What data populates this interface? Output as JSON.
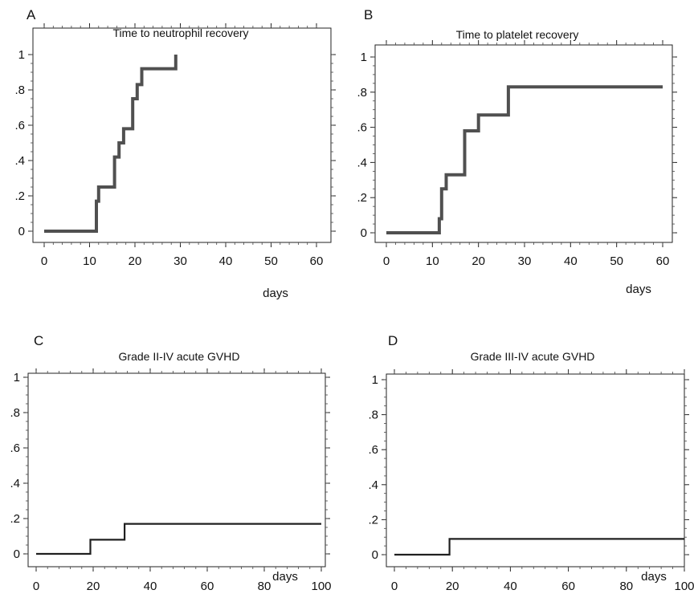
{
  "chart_data": [
    {
      "panel": "A",
      "type": "line",
      "step": true,
      "title": "Time to neutrophil recovery",
      "xlabel": "days",
      "ylabel": "",
      "xlim": [
        0,
        60
      ],
      "ylim": [
        0,
        1
      ],
      "xticks": [
        "0",
        "10",
        "20",
        "30",
        "40",
        "50",
        "60"
      ],
      "yticks": [
        "0",
        ".2",
        ".4",
        ".6",
        ".8",
        "1"
      ],
      "series": [
        {
          "x": [
            0,
            11.5,
            12,
            13,
            15.5,
            16.5,
            17.5,
            19.5,
            20.5,
            21.5,
            29
          ],
          "y": [
            0,
            0.17,
            0.25,
            0.25,
            0.42,
            0.5,
            0.58,
            0.75,
            0.83,
            0.92,
            1.0
          ]
        }
      ]
    },
    {
      "panel": "B",
      "type": "line",
      "step": true,
      "title": "Time to platelet recovery",
      "xlabel": "days",
      "ylabel": "",
      "xlim": [
        0,
        60
      ],
      "ylim": [
        0,
        1
      ],
      "xticks": [
        "0",
        "10",
        "20",
        "30",
        "40",
        "50",
        "60"
      ],
      "yticks": [
        "0",
        ".2",
        ".4",
        ".6",
        ".8",
        "1"
      ],
      "series": [
        {
          "x": [
            0,
            11.5,
            12,
            13,
            17,
            20,
            26.5,
            60
          ],
          "y": [
            0,
            0.08,
            0.25,
            0.33,
            0.58,
            0.67,
            0.83,
            0.83
          ]
        }
      ]
    },
    {
      "panel": "C",
      "type": "line",
      "step": true,
      "title": "Grade II-IV acute GVHD",
      "xlabel": "days",
      "ylabel": "",
      "xlim": [
        0,
        100
      ],
      "ylim": [
        0,
        1
      ],
      "xticks": [
        "0",
        "20",
        "40",
        "60",
        "80",
        "100"
      ],
      "yticks": [
        "0",
        ".2",
        ".4",
        ".6",
        ".8",
        "1"
      ],
      "series": [
        {
          "x": [
            0,
            19,
            31,
            100
          ],
          "y": [
            0,
            0.08,
            0.17,
            0.17
          ]
        }
      ]
    },
    {
      "panel": "D",
      "type": "line",
      "step": true,
      "title": "Grade III-IV acute GVHD",
      "xlabel": "days",
      "ylabel": "",
      "xlim": [
        0,
        100
      ],
      "ylim": [
        0,
        1
      ],
      "xticks": [
        "0",
        "20",
        "40",
        "60",
        "80",
        "100"
      ],
      "yticks": [
        "0",
        ".2",
        ".4",
        ".6",
        ".8",
        "1"
      ],
      "series": [
        {
          "x": [
            0,
            19,
            100
          ],
          "y": [
            0,
            0.09,
            0.09
          ]
        }
      ]
    }
  ]
}
